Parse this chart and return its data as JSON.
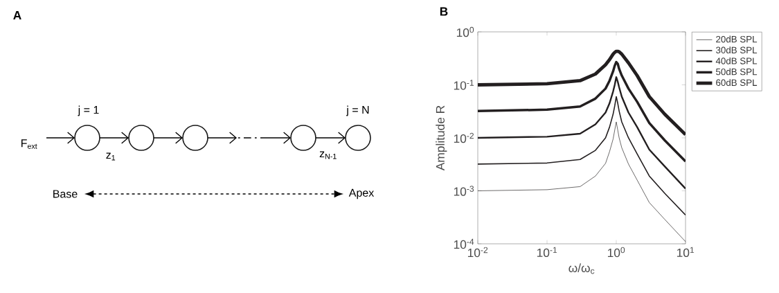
{
  "chart_data": [
    {
      "type": "other",
      "title": "A",
      "annotations": [
        "j = 1",
        "j = N",
        "F$_{ext}$",
        "z$_{1}$",
        "z$_{N-1}$",
        "Base",
        "Apex"
      ]
    },
    {
      "type": "line",
      "title": "B",
      "xlabel": "ω/ω$_{c}$",
      "ylabel": "Amplitude R",
      "log": "xy",
      "legend": "right",
      "x": [
        0.01,
        0.1,
        0.3,
        0.5,
        0.7,
        0.8,
        0.9,
        0.95,
        1,
        1.05,
        1.1,
        1.2,
        1.5,
        2,
        3,
        5,
        10
      ],
      "xlim": [
        0.01,
        10
      ],
      "ylim": [
        0.0001,
        1
      ],
      "xticks": [
        {
          "value": 0.01,
          "label": "10$^{-2}$"
        },
        {
          "value": 0.1,
          "label": "10$^{-1}$"
        },
        {
          "value": 1,
          "label": "10$^{0}$"
        },
        {
          "value": 10,
          "label": "10$^{1}$"
        }
      ],
      "yticks": [
        {
          "value": 0.0001,
          "label": "10$^{-4}$"
        },
        {
          "value": 0.001,
          "label": "10$^{-3}$"
        },
        {
          "value": 0.01,
          "label": "10$^{-2}$"
        },
        {
          "value": 0.1,
          "label": "10$^{-1}$"
        },
        {
          "value": 1,
          "label": "10$^{0}$"
        }
      ],
      "series": [
        {
          "name": "20dB SPL",
          "color": "#231f20",
          "values": [
            0.001,
            0.00105,
            0.0012,
            0.0019,
            0.0033,
            0.0055,
            0.0095,
            0.014,
            0.02,
            0.014,
            0.01,
            0.0065,
            0.0032,
            0.0016,
            0.0006,
            0.00029,
            0.00011
          ]
        },
        {
          "name": "30dB SPL",
          "color": "#231f20",
          "values": [
            0.0032,
            0.00335,
            0.0039,
            0.0058,
            0.01,
            0.016,
            0.028,
            0.04,
            0.06,
            0.045,
            0.032,
            0.02,
            0.01,
            0.005,
            0.0019,
            0.0009,
            0.00035
          ]
        },
        {
          "name": "40dB SPL",
          "color": "#231f20",
          "values": [
            0.01,
            0.0105,
            0.012,
            0.018,
            0.03,
            0.045,
            0.075,
            0.1,
            0.14,
            0.115,
            0.09,
            0.06,
            0.03,
            0.016,
            0.006,
            0.0029,
            0.0011
          ]
        },
        {
          "name": "50dB SPL",
          "color": "#231f20",
          "values": [
            0.032,
            0.034,
            0.039,
            0.055,
            0.085,
            0.12,
            0.18,
            0.23,
            0.27,
            0.25,
            0.2,
            0.15,
            0.085,
            0.048,
            0.019,
            0.009,
            0.0036
          ]
        },
        {
          "name": "60dB SPL",
          "color": "#231f20",
          "values": [
            0.1,
            0.105,
            0.12,
            0.16,
            0.24,
            0.3,
            0.38,
            0.41,
            0.43,
            0.43,
            0.42,
            0.38,
            0.26,
            0.15,
            0.06,
            0.028,
            0.0115
          ]
        }
      ]
    }
  ]
}
